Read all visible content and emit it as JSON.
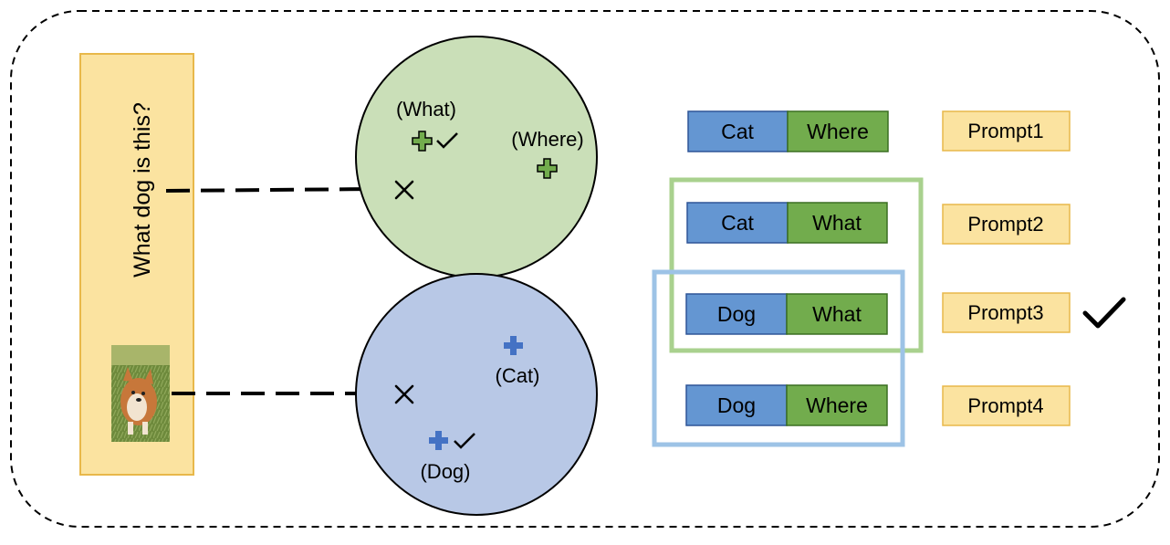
{
  "query": {
    "question": "What dog is this?",
    "image_alt": "photo of a corgi dog"
  },
  "question_space": {
    "anchors": [
      {
        "label": "(What)",
        "correct": true
      },
      {
        "label": "(Where)",
        "correct": false
      }
    ]
  },
  "image_space": {
    "anchors": [
      {
        "label": "(Cat)",
        "correct": false
      },
      {
        "label": "(Dog)",
        "correct": true
      }
    ]
  },
  "pairs": [
    {
      "image_key": "Cat",
      "question_key": "Where",
      "prompt": "Prompt1",
      "selected": false
    },
    {
      "image_key": "Cat",
      "question_key": "What",
      "prompt": "Prompt2",
      "selected": false
    },
    {
      "image_key": "Dog",
      "question_key": "What",
      "prompt": "Prompt3",
      "selected": true
    },
    {
      "image_key": "Dog",
      "question_key": "Where",
      "prompt": "Prompt4",
      "selected": false
    }
  ],
  "colors": {
    "query_bg": "#FBE3A0",
    "query_border": "#E8B84A",
    "question_space_fill": "#CADFB8",
    "image_space_fill": "#B8C8E6",
    "image_key_fill": "#6496D2",
    "question_key_fill": "#72AC4D",
    "prompt_fill": "#FBE3A0",
    "prompt_border": "#E8B84A",
    "green_group_border": "#A9D18E",
    "blue_group_border": "#9DC3E6",
    "green_plus": "#72AC4D",
    "blue_plus": "#4472C4"
  }
}
